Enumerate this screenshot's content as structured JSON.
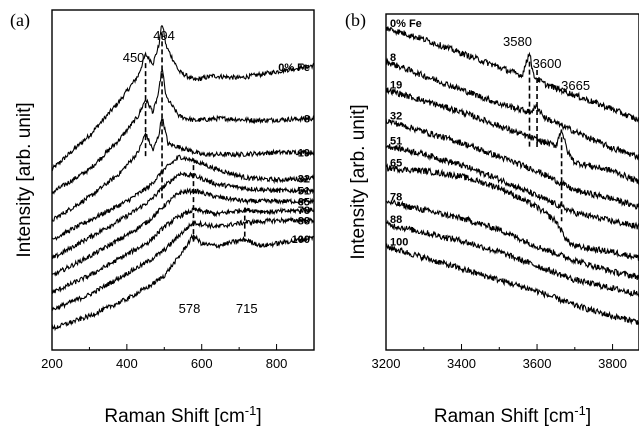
{
  "chart_data": [
    {
      "panel": "(a)",
      "type": "line",
      "xlabel": "Raman Shift",
      "xunit": "[cm",
      "xunit_sup": "-1",
      "xunit_close": "]",
      "ylabel": "Intensity [arb. unit]",
      "xlim": [
        200,
        900
      ],
      "x_ticks": [
        200,
        400,
        600,
        800
      ],
      "y_ticks_shown": false,
      "legend": "none (series labeled at right ends of traces)",
      "series_labels": [
        "0% Fe",
        "8",
        "19",
        "32",
        "51",
        "65",
        "78",
        "88",
        "100"
      ],
      "peak_labels": [
        {
          "text": "450",
          "x": 450
        },
        {
          "text": "494",
          "x": 494
        },
        {
          "text": "578",
          "x": 578
        },
        {
          "text": "715",
          "x": 715
        }
      ],
      "dashed_markers_x": [
        450,
        494,
        578,
        715
      ],
      "series": [
        {
          "name": "0% Fe",
          "x": [
            200,
            300,
            380,
            430,
            450,
            470,
            485,
            494,
            505,
            540,
            580,
            630,
            700,
            800,
            900
          ],
          "y": [
            0.3,
            0.46,
            0.62,
            0.74,
            0.84,
            0.8,
            0.88,
            0.99,
            0.88,
            0.76,
            0.72,
            0.74,
            0.73,
            0.76,
            0.79
          ]
        },
        {
          "name": "8",
          "x": [
            200,
            300,
            380,
            430,
            450,
            470,
            485,
            494,
            505,
            540,
            580,
            650,
            750,
            900
          ],
          "y": [
            0.19,
            0.3,
            0.44,
            0.55,
            0.63,
            0.57,
            0.66,
            0.78,
            0.64,
            0.55,
            0.53,
            0.54,
            0.53,
            0.54
          ]
        },
        {
          "name": "19",
          "x": [
            200,
            300,
            380,
            430,
            450,
            470,
            485,
            494,
            510,
            550,
            600,
            700,
            800,
            900
          ],
          "y": [
            0.06,
            0.17,
            0.28,
            0.38,
            0.47,
            0.39,
            0.46,
            0.55,
            0.42,
            0.4,
            0.37,
            0.37,
            0.38,
            0.38
          ]
        },
        {
          "name": "32",
          "x": [
            200,
            300,
            400,
            460,
            500,
            540,
            580,
            640,
            720,
            800,
            900
          ],
          "y": [
            -0.03,
            0.06,
            0.15,
            0.22,
            0.3,
            0.36,
            0.34,
            0.3,
            0.26,
            0.25,
            0.26
          ]
        },
        {
          "name": "51",
          "x": [
            200,
            300,
            400,
            460,
            500,
            540,
            580,
            640,
            720,
            800,
            900
          ],
          "y": [
            -0.12,
            -0.02,
            0.08,
            0.15,
            0.22,
            0.28,
            0.27,
            0.23,
            0.21,
            0.2,
            0.2
          ]
        },
        {
          "name": "65",
          "x": [
            200,
            300,
            400,
            460,
            500,
            540,
            580,
            640,
            720,
            800,
            900
          ],
          "y": [
            -0.2,
            -0.11,
            -0.01,
            0.06,
            0.13,
            0.19,
            0.2,
            0.17,
            0.15,
            0.15,
            0.15
          ]
        },
        {
          "name": "78",
          "x": [
            200,
            300,
            400,
            460,
            500,
            540,
            580,
            640,
            715,
            780,
            900
          ],
          "y": [
            -0.28,
            -0.2,
            -0.1,
            -0.04,
            0.03,
            0.08,
            0.11,
            0.09,
            0.11,
            0.1,
            0.11
          ]
        },
        {
          "name": "88",
          "x": [
            200,
            300,
            400,
            460,
            500,
            540,
            578,
            640,
            715,
            800,
            900
          ],
          "y": [
            -0.36,
            -0.29,
            -0.19,
            -0.13,
            -0.08,
            -0.01,
            0.05,
            0.03,
            0.05,
            0.06,
            0.06
          ]
        },
        {
          "name": "100",
          "x": [
            200,
            300,
            400,
            460,
            500,
            540,
            578,
            600,
            640,
            715,
            760,
            900
          ],
          "y": [
            -0.45,
            -0.39,
            -0.31,
            -0.25,
            -0.2,
            -0.11,
            -0.01,
            -0.05,
            -0.06,
            -0.03,
            -0.06,
            -0.02
          ]
        }
      ]
    },
    {
      "panel": "(b)",
      "type": "line",
      "xlabel": "Raman Shift",
      "xunit": "[cm",
      "xunit_sup": "-1",
      "xunit_close": "]",
      "ylabel": "Intensity [arb. unit]",
      "xlim": [
        3200,
        3870
      ],
      "x_ticks": [
        3200,
        3400,
        3600,
        3800
      ],
      "y_ticks_shown": false,
      "legend": "none (series labeled at left ends of traces)",
      "series_labels": [
        "0% Fe",
        "8",
        "19",
        "32",
        "51",
        "65",
        "78",
        "88",
        "100"
      ],
      "peak_labels": [
        {
          "text": "3580",
          "x": 3580
        },
        {
          "text": "3600",
          "x": 3600
        },
        {
          "text": "3665",
          "x": 3665
        }
      ],
      "dashed_markers_x": [
        3580,
        3600,
        3665
      ],
      "series": [
        {
          "name": "0% Fe",
          "x": [
            3200,
            3300,
            3400,
            3500,
            3560,
            3575,
            3580,
            3590,
            3620,
            3700,
            3800,
            3870
          ],
          "y": [
            0.95,
            0.91,
            0.86,
            0.81,
            0.78,
            0.84,
            0.87,
            0.78,
            0.75,
            0.71,
            0.66,
            0.62
          ]
        },
        {
          "name": "8",
          "x": [
            3200,
            3300,
            3400,
            3500,
            3580,
            3600,
            3620,
            3700,
            3800,
            3870
          ],
          "y": [
            0.83,
            0.78,
            0.73,
            0.68,
            0.65,
            0.67,
            0.63,
            0.58,
            0.52,
            0.49
          ]
        },
        {
          "name": "19",
          "x": [
            3200,
            3300,
            3400,
            3500,
            3600,
            3650,
            3665,
            3680,
            3700,
            3800,
            3870
          ],
          "y": [
            0.73,
            0.69,
            0.65,
            0.6,
            0.55,
            0.53,
            0.59,
            0.51,
            0.47,
            0.44,
            0.4
          ]
        },
        {
          "name": "32",
          "x": [
            3200,
            3300,
            3400,
            3500,
            3600,
            3700,
            3800,
            3870
          ],
          "y": [
            0.62,
            0.58,
            0.54,
            0.49,
            0.44,
            0.37,
            0.34,
            0.31
          ]
        },
        {
          "name": "51",
          "x": [
            3200,
            3300,
            3400,
            3500,
            3600,
            3700,
            3800,
            3870
          ],
          "y": [
            0.53,
            0.5,
            0.46,
            0.41,
            0.35,
            0.29,
            0.26,
            0.24
          ]
        },
        {
          "name": "65",
          "x": [
            3200,
            3300,
            3400,
            3500,
            3600,
            3650,
            3680,
            3700,
            3800,
            3870
          ],
          "y": [
            0.45,
            0.44,
            0.42,
            0.38,
            0.31,
            0.26,
            0.19,
            0.17,
            0.15,
            0.13
          ]
        },
        {
          "name": "78",
          "x": [
            3200,
            3300,
            3400,
            3500,
            3600,
            3700,
            3800,
            3870
          ],
          "y": [
            0.33,
            0.3,
            0.27,
            0.23,
            0.17,
            0.12,
            0.08,
            0.06
          ]
        },
        {
          "name": "88",
          "x": [
            3200,
            3300,
            3400,
            3500,
            3600,
            3700,
            3800,
            3870
          ],
          "y": [
            0.25,
            0.22,
            0.19,
            0.15,
            0.1,
            0.05,
            0.02,
            0.0
          ]
        },
        {
          "name": "100",
          "x": [
            3200,
            3300,
            3400,
            3500,
            3600,
            3700,
            3800,
            3870
          ],
          "y": [
            0.17,
            0.13,
            0.09,
            0.05,
            0.01,
            -0.04,
            -0.08,
            -0.1
          ]
        }
      ]
    }
  ]
}
